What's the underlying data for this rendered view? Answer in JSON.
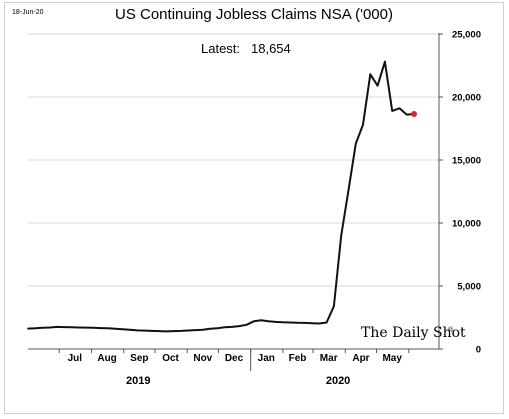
{
  "chart_data": {
    "type": "line",
    "date_stamp": "18-Jun-20",
    "title": "US Continuing Jobless Claims NSA ('000)",
    "annotation": {
      "label": "Latest:",
      "value": "18,654"
    },
    "watermark": {
      "text": "The Daily Shot",
      "mark": "®"
    },
    "ylim": [
      0,
      25000
    ],
    "yticks": [
      {
        "value": 0,
        "label": "0"
      },
      {
        "value": 5000,
        "label": "5,000"
      },
      {
        "value": 10000,
        "label": "10,000"
      },
      {
        "value": 15000,
        "label": "15,000"
      },
      {
        "value": 20000,
        "label": "20,000"
      },
      {
        "value": 25000,
        "label": "25,000"
      }
    ],
    "xlim": [
      "2019-06-01",
      "2020-06-30"
    ],
    "xticks": [
      {
        "date": "2019-07-01",
        "label": "Jul"
      },
      {
        "date": "2019-08-01",
        "label": "Aug"
      },
      {
        "date": "2019-09-01",
        "label": "Sep"
      },
      {
        "date": "2019-10-01",
        "label": "Oct"
      },
      {
        "date": "2019-11-01",
        "label": "Nov"
      },
      {
        "date": "2019-12-01",
        "label": "Dec"
      },
      {
        "date": "2020-01-01",
        "label": "Jan"
      },
      {
        "date": "2020-02-01",
        "label": "Feb"
      },
      {
        "date": "2020-03-01",
        "label": "Mar"
      },
      {
        "date": "2020-04-01",
        "label": "Apr"
      },
      {
        "date": "2020-05-01",
        "label": "May"
      }
    ],
    "year_labels": [
      {
        "date": "2019-09-15",
        "label": "2019"
      },
      {
        "date": "2020-03-25",
        "label": "2020"
      }
    ],
    "year_divider": "2020-01-01",
    "grid": "horizontal",
    "colors": {
      "line": "#111111",
      "grid": "#d9d9d9",
      "latest_marker": "#e8202a"
    },
    "series": [
      {
        "points": [
          [
            "2019-06-01",
            1620
          ],
          [
            "2019-06-08",
            1640
          ],
          [
            "2019-06-15",
            1680
          ],
          [
            "2019-06-22",
            1710
          ],
          [
            "2019-06-29",
            1750
          ],
          [
            "2019-07-06",
            1740
          ],
          [
            "2019-07-13",
            1720
          ],
          [
            "2019-07-20",
            1710
          ],
          [
            "2019-07-27",
            1700
          ],
          [
            "2019-08-03",
            1680
          ],
          [
            "2019-08-10",
            1660
          ],
          [
            "2019-08-17",
            1640
          ],
          [
            "2019-08-24",
            1610
          ],
          [
            "2019-08-31",
            1560
          ],
          [
            "2019-09-07",
            1520
          ],
          [
            "2019-09-14",
            1480
          ],
          [
            "2019-09-21",
            1460
          ],
          [
            "2019-09-28",
            1440
          ],
          [
            "2019-10-05",
            1420
          ],
          [
            "2019-10-12",
            1400
          ],
          [
            "2019-10-19",
            1420
          ],
          [
            "2019-10-26",
            1440
          ],
          [
            "2019-11-02",
            1470
          ],
          [
            "2019-11-09",
            1500
          ],
          [
            "2019-11-16",
            1520
          ],
          [
            "2019-11-23",
            1600
          ],
          [
            "2019-11-30",
            1640
          ],
          [
            "2019-12-07",
            1720
          ],
          [
            "2019-12-14",
            1750
          ],
          [
            "2019-12-21",
            1820
          ],
          [
            "2019-12-28",
            1920
          ],
          [
            "2020-01-04",
            2200
          ],
          [
            "2020-01-11",
            2280
          ],
          [
            "2020-01-18",
            2200
          ],
          [
            "2020-01-25",
            2150
          ],
          [
            "2020-02-01",
            2120
          ],
          [
            "2020-02-08",
            2100
          ],
          [
            "2020-02-15",
            2080
          ],
          [
            "2020-02-22",
            2070
          ],
          [
            "2020-02-29",
            2050
          ],
          [
            "2020-03-07",
            2020
          ],
          [
            "2020-03-14",
            2100
          ],
          [
            "2020-03-21",
            3400
          ],
          [
            "2020-03-28",
            9000
          ],
          [
            "2020-04-04",
            12600
          ],
          [
            "2020-04-11",
            16300
          ],
          [
            "2020-04-18",
            17800
          ],
          [
            "2020-04-25",
            21800
          ],
          [
            "2020-05-02",
            20900
          ],
          [
            "2020-05-09",
            22800
          ],
          [
            "2020-05-16",
            18900
          ],
          [
            "2020-05-23",
            19100
          ],
          [
            "2020-05-30",
            18600
          ],
          [
            "2020-06-06",
            18654
          ]
        ]
      }
    ]
  }
}
